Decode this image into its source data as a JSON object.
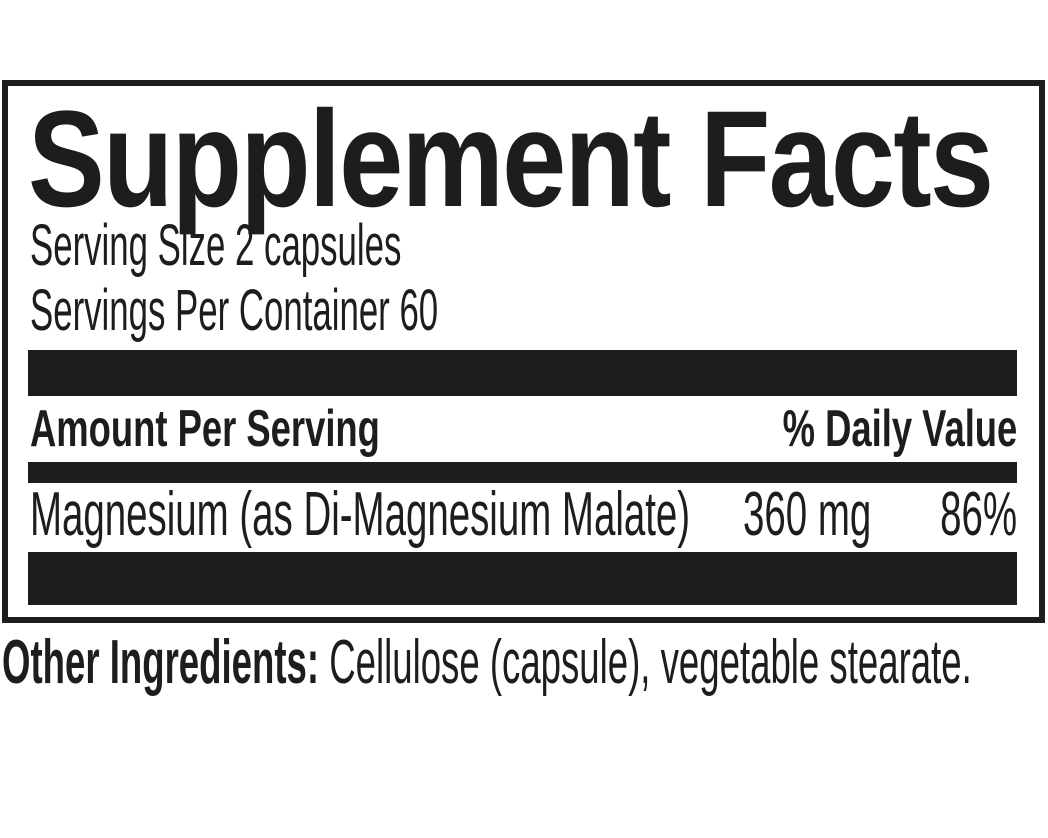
{
  "label": {
    "title": "Supplement Facts",
    "serving_size": "Serving Size 2 capsules",
    "servings_per_container": "Servings Per Container 60",
    "columns": {
      "amount_header": "Amount Per Serving",
      "daily_value_header": "% Daily Value"
    },
    "rows": [
      {
        "name": "Magnesium (as Di-Magnesium Malate)",
        "amount": "360 mg",
        "daily_value": "86%"
      }
    ],
    "other_ingredients": {
      "label": "Other Ingredients:",
      "text": " Cellulose (capsule), vegetable stearate."
    }
  },
  "colors": {
    "ink": "#1d1d1b",
    "background": "#ffffff"
  }
}
